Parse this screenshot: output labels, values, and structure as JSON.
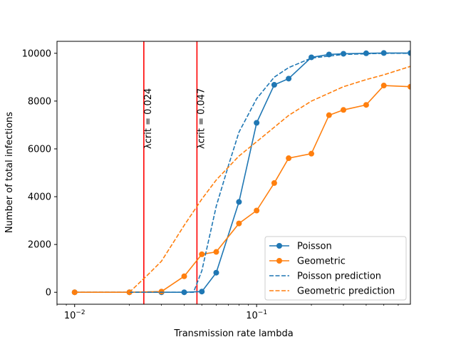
{
  "chart_data": {
    "type": "line",
    "title": "",
    "xlabel": "Transmission rate lambda",
    "ylabel": "Number of total infections",
    "xscale": "log",
    "xlim": [
      0.008,
      0.7
    ],
    "ylim": [
      -500,
      10500
    ],
    "xticks": [
      {
        "value": 0.01,
        "base": "10",
        "exp": "−2"
      },
      {
        "value": 0.1,
        "base": "10",
        "exp": "−1"
      }
    ],
    "yticks": [
      0,
      2000,
      4000,
      6000,
      8000,
      10000
    ],
    "grid": false,
    "legend_position": "lower right",
    "series": [
      {
        "name": "Poisson",
        "color": "#1f77b4",
        "style": "solid",
        "marker": "circle",
        "x": [
          0.01,
          0.02,
          0.03,
          0.04,
          0.05,
          0.06,
          0.08,
          0.1,
          0.125,
          0.15,
          0.2,
          0.25,
          0.3,
          0.4,
          0.5,
          0.7
        ],
        "y": [
          0,
          0,
          0,
          0,
          30,
          820,
          3780,
          7090,
          8680,
          8940,
          9830,
          9950,
          9980,
          10000,
          10010,
          10010
        ]
      },
      {
        "name": "Geometric",
        "color": "#ff7f0e",
        "style": "solid",
        "marker": "circle",
        "x": [
          0.01,
          0.02,
          0.03,
          0.04,
          0.05,
          0.06,
          0.08,
          0.1,
          0.125,
          0.15,
          0.2,
          0.25,
          0.3,
          0.4,
          0.5,
          0.7
        ],
        "y": [
          0,
          0,
          30,
          670,
          1590,
          1690,
          2880,
          3420,
          4570,
          5610,
          5800,
          7410,
          7630,
          7840,
          8650,
          8600
        ]
      },
      {
        "name": "Poisson prediction",
        "color": "#1f77b4",
        "style": "dashed",
        "marker": "none",
        "x": [
          0.01,
          0.02,
          0.03,
          0.04,
          0.045,
          0.05,
          0.06,
          0.07,
          0.08,
          0.1,
          0.125,
          0.15,
          0.2,
          0.3,
          0.5,
          0.7
        ],
        "y": [
          0,
          0,
          0,
          0,
          0,
          900,
          3600,
          5300,
          6700,
          8100,
          9000,
          9400,
          9800,
          9950,
          10000,
          10000
        ]
      },
      {
        "name": "Geometric prediction",
        "color": "#ff7f0e",
        "style": "dashed",
        "marker": "none",
        "x": [
          0.01,
          0.02,
          0.022,
          0.025,
          0.03,
          0.04,
          0.05,
          0.06,
          0.08,
          0.1,
          0.15,
          0.2,
          0.3,
          0.4,
          0.5,
          0.7
        ],
        "y": [
          0,
          0,
          300,
          700,
          1300,
          2800,
          3900,
          4700,
          5700,
          6300,
          7400,
          8000,
          8600,
          8900,
          9100,
          9450
        ]
      }
    ],
    "annotations": [
      {
        "label": "λcrit = 0.024",
        "x": 0.024,
        "color": "#ff0000"
      },
      {
        "label": "λcrit = 0.047",
        "x": 0.047,
        "color": "#ff0000"
      }
    ]
  }
}
